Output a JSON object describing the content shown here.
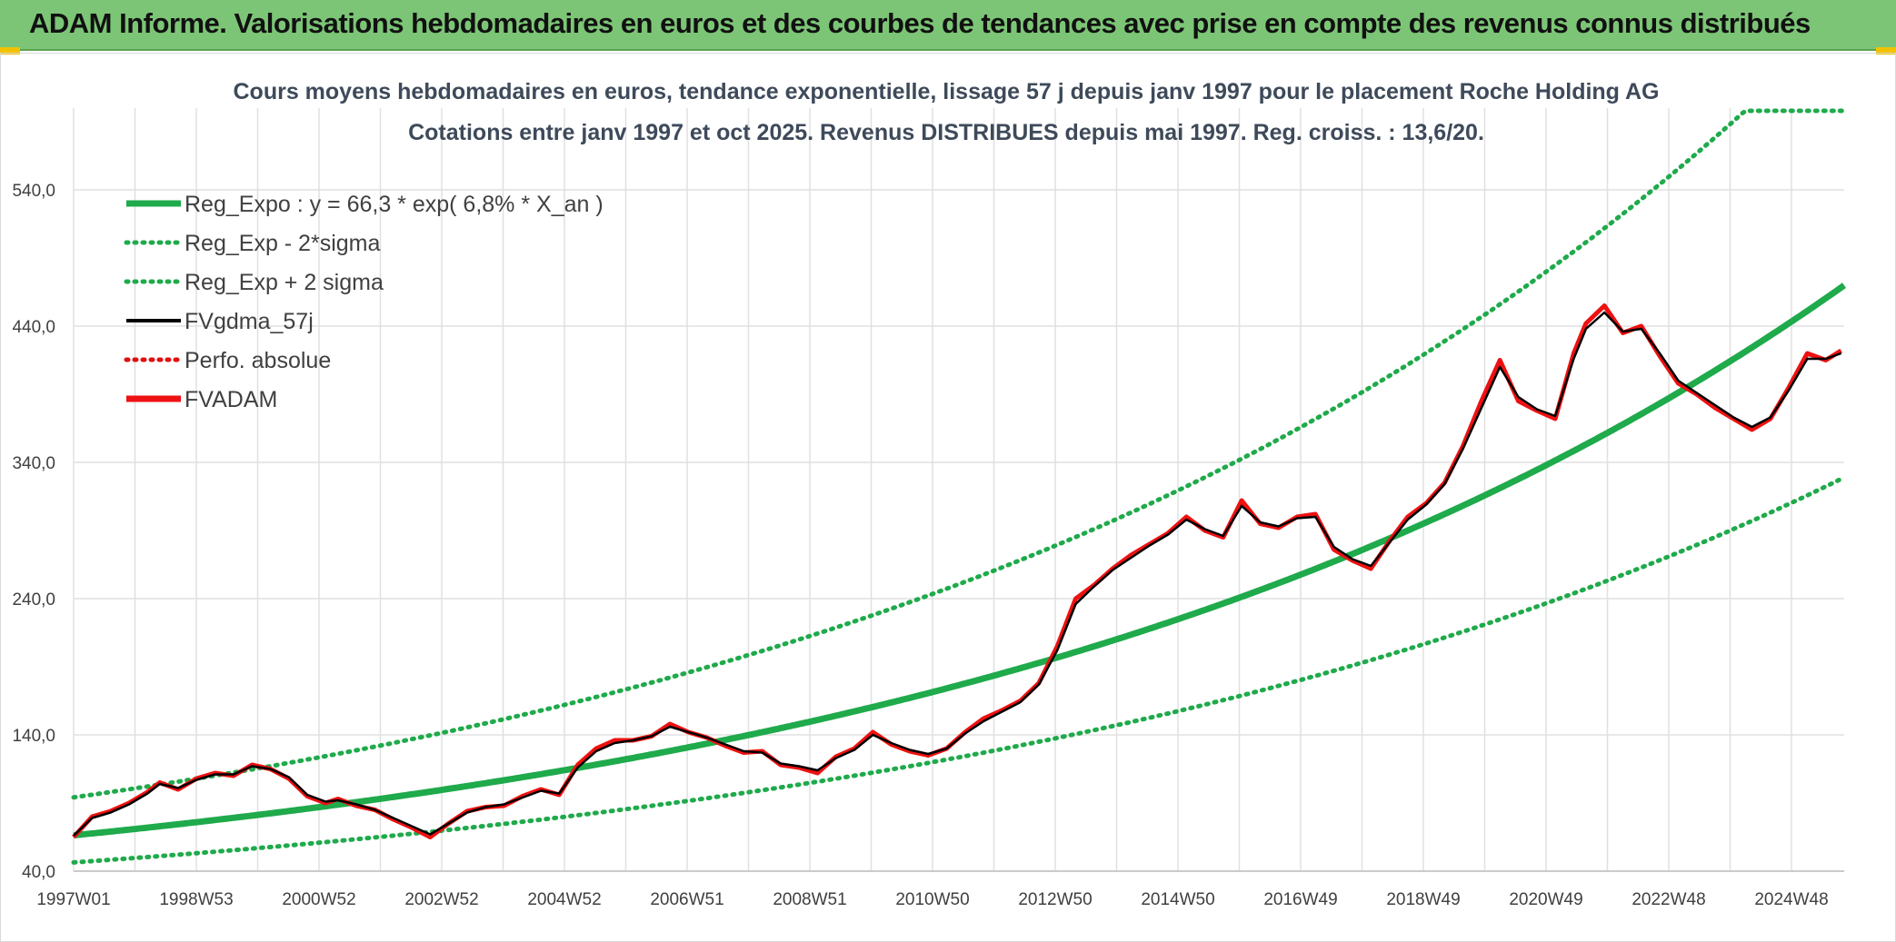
{
  "banner": {
    "text": "ADAM Informe. Valorisations hebdomadaires en euros et des courbes de tendances avec prise en compte des revenus connus distribués"
  },
  "colors": {
    "banner_bg": "#7cc576",
    "reg_green": "#1faa4b",
    "dotted_green": "#1faa4b",
    "fv_red": "#ee1111",
    "fvgdma_black": "#000000",
    "perfo_red": "#e01010",
    "grid": "#e0e0e0"
  },
  "chart_data": {
    "type": "line",
    "title": [
      "Cours moyens hebdomadaires en euros, tendance exponentielle, lissage 57 j depuis janv 1997 pour le placement Roche Holding AG",
      "Cotations entre janv 1997 et oct 2025. Revenus DISTRIBUES depuis mai 1997. Reg. croiss. : 13,6/20."
    ],
    "x_range": [
      1997.0,
      2025.8
    ],
    "x_tick_labels": [
      "1997W01",
      "1998W53",
      "2000W52",
      "2002W52",
      "2004W52",
      "2006W51",
      "2008W51",
      "2010W50",
      "2012W50",
      "2014W50",
      "2016W49",
      "2018W49",
      "2020W49",
      "2022W48",
      "2024W48"
    ],
    "y_ticks": [
      "40,0",
      "140,0",
      "240,0",
      "340,0",
      "440,0",
      "540,0"
    ],
    "y_tick_values": [
      40,
      140,
      240,
      340,
      440,
      540
    ],
    "ylim": [
      40,
      600
    ],
    "grid": true,
    "legend_position": "top-left",
    "legend": [
      {
        "label": "Reg_Expo : y = 66,3 * exp( 6,8% *  X_an )",
        "style": "solid-thick",
        "color": "#1faa4b"
      },
      {
        "label": "Reg_Exp - 2*sigma",
        "style": "dotted",
        "color": "#1faa4b"
      },
      {
        "label": "Reg_Exp + 2 sigma",
        "style": "dotted",
        "color": "#1faa4b"
      },
      {
        "label": "FVgdma_57j",
        "style": "solid",
        "color": "#000000"
      },
      {
        "label": "Perfo. absolue",
        "style": "dotted",
        "color": "#e01010"
      },
      {
        "label": "FVADAM",
        "style": "solid-thick",
        "color": "#ee1111"
      }
    ],
    "regression": {
      "a": 66.3,
      "b": 0.068,
      "x0": 1997.0,
      "upper_factor": 1.42,
      "lower_factor": 0.7,
      "upper_cap": 598
    },
    "series": [
      {
        "name": "FVADAM",
        "x": [
          1997.0,
          1997.3,
          1997.6,
          1997.9,
          1998.2,
          1998.4,
          1998.7,
          1999.0,
          1999.3,
          1999.6,
          1999.9,
          2000.2,
          2000.5,
          2000.8,
          2001.1,
          2001.3,
          2001.6,
          2001.9,
          2002.2,
          2002.5,
          2002.8,
          2003.1,
          2003.4,
          2003.7,
          2004.0,
          2004.3,
          2004.6,
          2004.9,
          2005.2,
          2005.5,
          2005.8,
          2006.1,
          2006.4,
          2006.7,
          2007.0,
          2007.3,
          2007.6,
          2007.9,
          2008.2,
          2008.5,
          2008.8,
          2009.1,
          2009.4,
          2009.7,
          2010.0,
          2010.3,
          2010.6,
          2010.9,
          2011.2,
          2011.5,
          2011.8,
          2012.1,
          2012.4,
          2012.7,
          2013.0,
          2013.3,
          2013.6,
          2013.9,
          2014.2,
          2014.5,
          2014.8,
          2015.1,
          2015.4,
          2015.7,
          2016.0,
          2016.3,
          2016.6,
          2016.9,
          2017.2,
          2017.5,
          2017.8,
          2018.1,
          2018.4,
          2018.7,
          2019.0,
          2019.3,
          2019.6,
          2019.9,
          2020.2,
          2020.5,
          2020.8,
          2021.1,
          2021.4,
          2021.6,
          2021.9,
          2022.2,
          2022.5,
          2022.8,
          2023.1,
          2023.4,
          2023.7,
          2024.0,
          2024.3,
          2024.6,
          2024.9,
          2025.2,
          2025.5,
          2025.75
        ],
        "y": [
          65,
          80,
          84,
          90,
          98,
          105,
          100,
          108,
          112,
          110,
          118,
          115,
          108,
          95,
          90,
          93,
          88,
          85,
          78,
          72,
          65,
          75,
          84,
          87,
          88,
          95,
          100,
          96,
          118,
          130,
          136,
          136,
          139,
          148,
          142,
          138,
          132,
          127,
          128,
          118,
          116,
          112,
          124,
          130,
          142,
          133,
          128,
          125,
          130,
          142,
          152,
          158,
          165,
          178,
          205,
          240,
          250,
          262,
          272,
          280,
          288,
          300,
          290,
          285,
          312,
          295,
          292,
          300,
          302,
          276,
          268,
          262,
          282,
          300,
          310,
          325,
          352,
          385,
          415,
          385,
          378,
          372,
          420,
          442,
          455,
          435,
          440,
          418,
          398,
          390,
          380,
          372,
          364,
          372,
          395,
          420,
          415,
          422
        ]
      },
      {
        "name": "FVgdma_57j",
        "x": [
          1997.0,
          1997.3,
          1997.6,
          1997.9,
          1998.2,
          1998.4,
          1998.7,
          1999.0,
          1999.3,
          1999.6,
          1999.9,
          2000.2,
          2000.5,
          2000.8,
          2001.1,
          2001.3,
          2001.6,
          2001.9,
          2002.2,
          2002.5,
          2002.8,
          2003.1,
          2003.4,
          2003.7,
          2004.0,
          2004.3,
          2004.6,
          2004.9,
          2005.2,
          2005.5,
          2005.8,
          2006.1,
          2006.4,
          2006.7,
          2007.0,
          2007.3,
          2007.6,
          2007.9,
          2008.2,
          2008.5,
          2008.8,
          2009.1,
          2009.4,
          2009.7,
          2010.0,
          2010.3,
          2010.6,
          2010.9,
          2011.2,
          2011.5,
          2011.8,
          2012.1,
          2012.4,
          2012.7,
          2013.0,
          2013.3,
          2013.6,
          2013.9,
          2014.2,
          2014.5,
          2014.8,
          2015.1,
          2015.4,
          2015.7,
          2016.0,
          2016.3,
          2016.6,
          2016.9,
          2017.2,
          2017.5,
          2017.8,
          2018.1,
          2018.4,
          2018.7,
          2019.0,
          2019.3,
          2019.6,
          2019.9,
          2020.2,
          2020.5,
          2020.8,
          2021.1,
          2021.4,
          2021.6,
          2021.9,
          2022.2,
          2022.5,
          2022.8,
          2023.1,
          2023.4,
          2023.7,
          2024.0,
          2024.3,
          2024.6,
          2024.9,
          2025.2,
          2025.5,
          2025.75
        ],
        "y": [
          66,
          79,
          83,
          89,
          97,
          104,
          101,
          107,
          111,
          111,
          117,
          115,
          109,
          96,
          91,
          92,
          89,
          85,
          79,
          73,
          67,
          75,
          83,
          87,
          89,
          94,
          99,
          97,
          116,
          128,
          134,
          136,
          139,
          146,
          142,
          138,
          133,
          128,
          127,
          119,
          117,
          114,
          123,
          129,
          140,
          134,
          129,
          126,
          130,
          141,
          150,
          157,
          164,
          177,
          202,
          236,
          249,
          261,
          270,
          279,
          287,
          298,
          291,
          286,
          308,
          296,
          293,
          299,
          300,
          278,
          269,
          264,
          281,
          298,
          309,
          324,
          350,
          380,
          410,
          388,
          379,
          374,
          416,
          438,
          450,
          436,
          438,
          420,
          400,
          391,
          382,
          373,
          366,
          373,
          393,
          416,
          416,
          420
        ]
      }
    ]
  }
}
